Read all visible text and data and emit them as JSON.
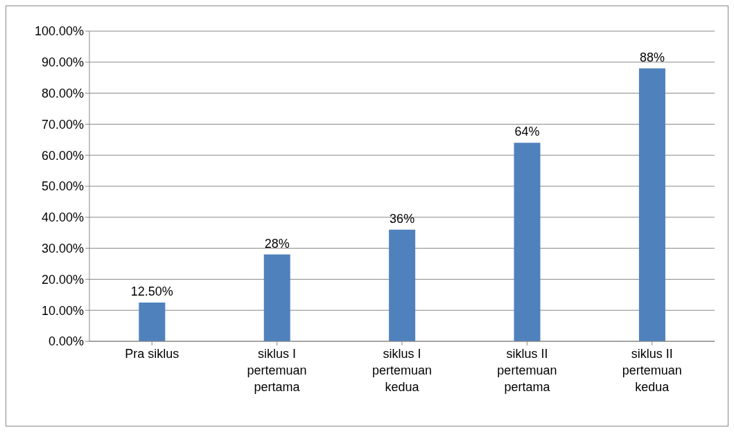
{
  "chart_data": {
    "type": "bar",
    "categories": [
      "Pra siklus",
      "siklus I pertemuan pertama",
      "siklus I pertemuan kedua",
      "siklus II pertemuan pertama",
      "siklus II pertemuan kedua"
    ],
    "values": [
      12.5,
      28,
      36,
      64,
      88
    ],
    "color": "#4f81bd",
    "value_labels": [
      "12.50%",
      "28%",
      "36%",
      "64%",
      "88%"
    ],
    "ylim": [
      0,
      100
    ],
    "yticks": [
      {
        "value": 0,
        "label": "0.00%"
      },
      {
        "value": 10,
        "label": "10.00%"
      },
      {
        "value": 20,
        "label": "20.00%"
      },
      {
        "value": 30,
        "label": "30.00%"
      },
      {
        "value": 40,
        "label": "40.00%"
      },
      {
        "value": 50,
        "label": "50.00%"
      },
      {
        "value": 60,
        "label": "60.00%"
      },
      {
        "value": 70,
        "label": "70.00%"
      },
      {
        "value": 80,
        "label": "80.00%"
      },
      {
        "value": 90,
        "label": "90.00%"
      },
      {
        "value": 100,
        "label": "100.00%"
      }
    ],
    "grid": "y",
    "legend": false
  }
}
